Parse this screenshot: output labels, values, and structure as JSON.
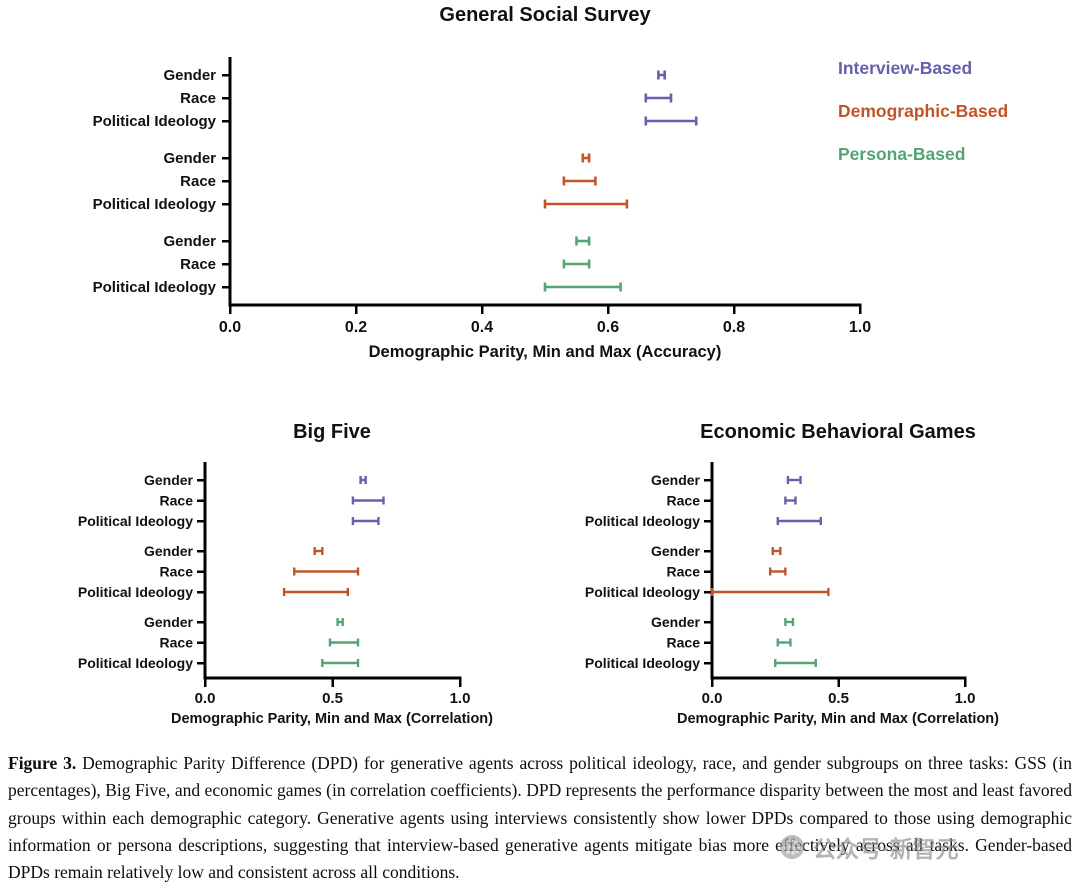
{
  "legend": {
    "items": [
      {
        "label": "Interview-Based",
        "color": "#6661ad"
      },
      {
        "label": "Demographic-Based",
        "color": "#c2542a"
      },
      {
        "label": "Persona-Based",
        "color": "#56a376"
      }
    ]
  },
  "chart_data": [
    {
      "type": "range_bar",
      "title": "General Social Survey",
      "xlabel": "Demographic Parity, Min and Max (Accuracy)",
      "xlim": [
        0.0,
        1.0
      ],
      "xticks": [
        "0.0",
        "0.2",
        "0.4",
        "0.6",
        "0.8",
        "1.0"
      ],
      "row_labels": [
        "Gender",
        "Race",
        "Political Ideology"
      ],
      "legend_position": "top-right",
      "grid": false,
      "series": [
        {
          "name": "Interview-Based",
          "color": "#6661ad",
          "rows": [
            {
              "label": "Gender",
              "min": 0.68,
              "max": 0.69
            },
            {
              "label": "Race",
              "min": 0.66,
              "max": 0.7
            },
            {
              "label": "Political Ideology",
              "min": 0.66,
              "max": 0.74
            }
          ]
        },
        {
          "name": "Demographic-Based",
          "color": "#c2542a",
          "rows": [
            {
              "label": "Gender",
              "min": 0.56,
              "max": 0.57
            },
            {
              "label": "Race",
              "min": 0.53,
              "max": 0.58
            },
            {
              "label": "Political Ideology",
              "min": 0.5,
              "max": 0.63
            }
          ]
        },
        {
          "name": "Persona-Based",
          "color": "#56a376",
          "rows": [
            {
              "label": "Gender",
              "min": 0.55,
              "max": 0.57
            },
            {
              "label": "Race",
              "min": 0.53,
              "max": 0.57
            },
            {
              "label": "Political Ideology",
              "min": 0.5,
              "max": 0.62
            }
          ]
        }
      ]
    },
    {
      "type": "range_bar",
      "title": "Big Five",
      "xlabel": "Demographic Parity, Min and Max (Correlation)",
      "xlim": [
        0.0,
        1.0
      ],
      "xticks": [
        "0.0",
        "0.5",
        "1.0"
      ],
      "row_labels": [
        "Gender",
        "Race",
        "Political Ideology"
      ],
      "grid": false,
      "series": [
        {
          "name": "Interview-Based",
          "color": "#6661ad",
          "rows": [
            {
              "label": "Gender",
              "min": 0.61,
              "max": 0.63
            },
            {
              "label": "Race",
              "min": 0.58,
              "max": 0.7
            },
            {
              "label": "Political Ideology",
              "min": 0.58,
              "max": 0.68
            }
          ]
        },
        {
          "name": "Demographic-Based",
          "color": "#c2542a",
          "rows": [
            {
              "label": "Gender",
              "min": 0.43,
              "max": 0.46
            },
            {
              "label": "Race",
              "min": 0.35,
              "max": 0.6
            },
            {
              "label": "Political Ideology",
              "min": 0.31,
              "max": 0.56
            }
          ]
        },
        {
          "name": "Persona-Based",
          "color": "#56a376",
          "rows": [
            {
              "label": "Gender",
              "min": 0.52,
              "max": 0.54
            },
            {
              "label": "Race",
              "min": 0.49,
              "max": 0.6
            },
            {
              "label": "Political Ideology",
              "min": 0.46,
              "max": 0.6
            }
          ]
        }
      ]
    },
    {
      "type": "range_bar",
      "title": "Economic Behavioral Games",
      "xlabel": "Demographic Parity, Min and Max (Correlation)",
      "xlim": [
        0.0,
        1.0
      ],
      "xticks": [
        "0.0",
        "0.5",
        "1.0"
      ],
      "row_labels": [
        "Gender",
        "Race",
        "Political Ideology"
      ],
      "grid": false,
      "series": [
        {
          "name": "Interview-Based",
          "color": "#6661ad",
          "rows": [
            {
              "label": "Gender",
              "min": 0.3,
              "max": 0.35
            },
            {
              "label": "Race",
              "min": 0.29,
              "max": 0.33
            },
            {
              "label": "Political Ideology",
              "min": 0.26,
              "max": 0.43
            }
          ]
        },
        {
          "name": "Demographic-Based",
          "color": "#c2542a",
          "rows": [
            {
              "label": "Gender",
              "min": 0.24,
              "max": 0.27
            },
            {
              "label": "Race",
              "min": 0.23,
              "max": 0.29
            },
            {
              "label": "Political Ideology",
              "min": 0.0,
              "max": 0.46
            }
          ]
        },
        {
          "name": "Persona-Based",
          "color": "#56a376",
          "rows": [
            {
              "label": "Gender",
              "min": 0.29,
              "max": 0.32
            },
            {
              "label": "Race",
              "min": 0.26,
              "max": 0.31
            },
            {
              "label": "Political Ideology",
              "min": 0.25,
              "max": 0.41
            }
          ]
        }
      ]
    }
  ],
  "caption": {
    "label": "Figure 3.",
    "text": " Demographic Parity Difference (DPD) for generative agents across political ideology, race, and gender subgroups on three tasks: GSS (in percentages), Big Five, and economic games (in correlation coefficients). DPD represents the performance disparity between the most and least favored groups within each demographic category. Generative agents using interviews consistently show lower DPDs compared to those using demographic information or persona descriptions, suggesting that interview-based generative agents mitigate bias more effectively across all tasks. Gender-based DPDs remain relatively low and consistent across all conditions."
  },
  "watermark": {
    "text": "公众号·新智元"
  }
}
